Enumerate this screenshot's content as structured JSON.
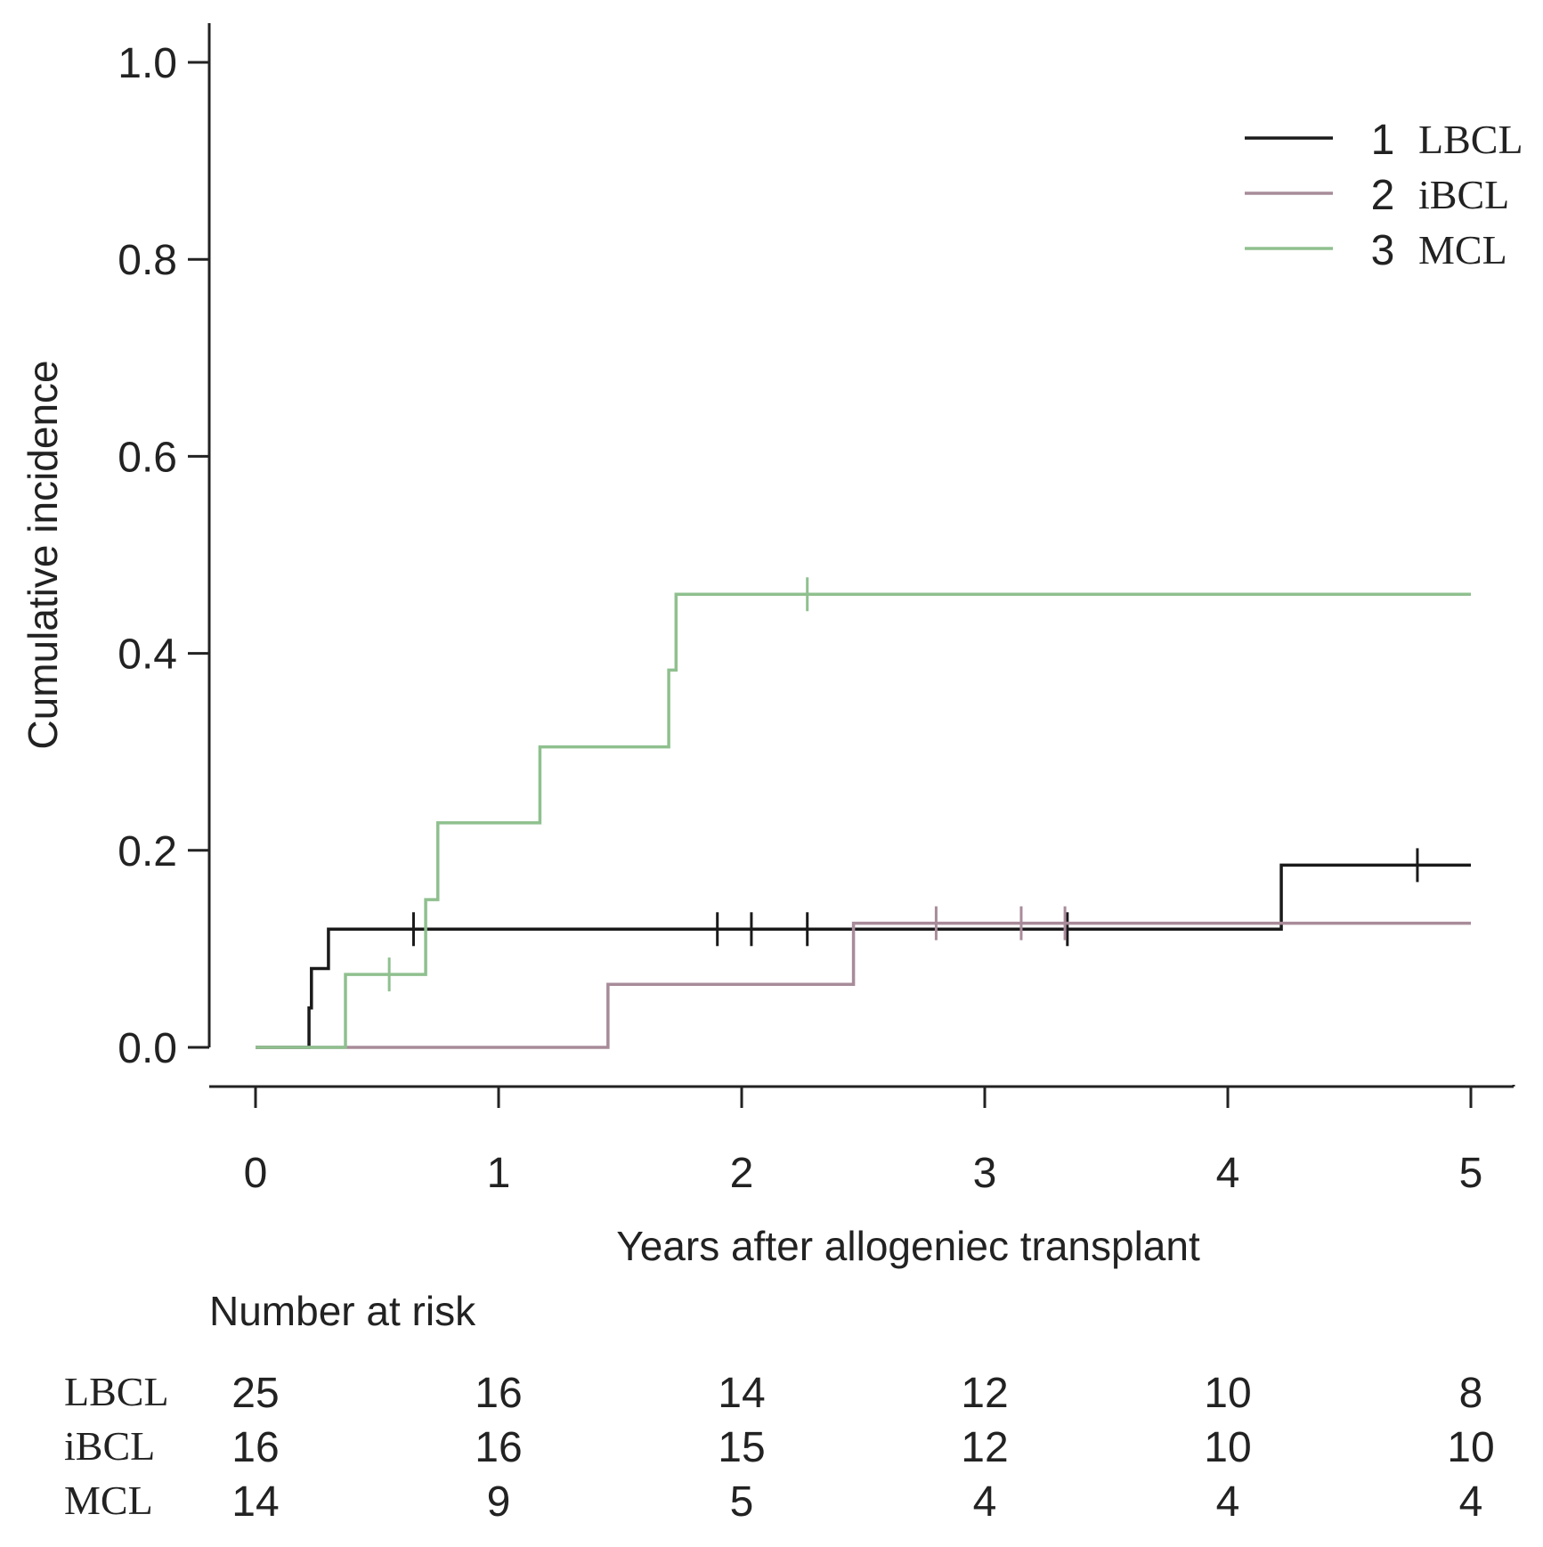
{
  "chart_data": {
    "type": "line",
    "step": true,
    "title": "",
    "xlabel": "Years after allogeniec transplant",
    "ylabel": "Cumulative incidence",
    "xlim": [
      0,
      5
    ],
    "ylim": [
      0,
      1.0
    ],
    "xticks": [
      0,
      1,
      2,
      3,
      4,
      5
    ],
    "xtick_labels": [
      "0",
      "1",
      "2",
      "3",
      "4",
      "5"
    ],
    "yticks": [
      0.0,
      0.2,
      0.4,
      0.6,
      0.8,
      1.0
    ],
    "ytick_labels": [
      "0.0",
      "0.2",
      "0.4",
      "0.6",
      "0.8",
      "1.0"
    ],
    "grid": false,
    "legend_position": "top-right",
    "series": [
      {
        "number": "1",
        "name": "LBCL",
        "color": "#1a1a1a",
        "steps": [
          [
            0,
            0
          ],
          [
            0.22,
            0.04
          ],
          [
            0.23,
            0.08
          ],
          [
            0.3,
            0.12
          ],
          [
            4.22,
            0.185
          ]
        ],
        "censor_times": [
          0.65,
          1.9,
          2.04,
          2.27,
          3.34,
          4.78
        ],
        "end": 5.0
      },
      {
        "number": "2",
        "name": "iBCL",
        "color": "#a88b99",
        "steps": [
          [
            0,
            0
          ],
          [
            1.45,
            0.064
          ],
          [
            2.46,
            0.126
          ]
        ],
        "censor_times": [
          2.8,
          3.15,
          3.33
        ],
        "end": 5.0
      },
      {
        "number": "3",
        "name": "MCL",
        "color": "#8fc08f",
        "steps": [
          [
            0,
            0
          ],
          [
            0.37,
            0.074
          ],
          [
            0.7,
            0.15
          ],
          [
            0.75,
            0.228
          ],
          [
            1.17,
            0.305
          ],
          [
            1.7,
            0.383
          ],
          [
            1.73,
            0.46
          ]
        ],
        "censor_times": [
          0.55,
          2.27
        ],
        "end": 5.0
      }
    ],
    "risk_table": {
      "title": "Number at risk",
      "times": [
        0,
        1,
        2,
        3,
        4,
        5
      ],
      "rows": [
        {
          "label": "LBCL",
          "counts": [
            25,
            16,
            14,
            12,
            10,
            8
          ]
        },
        {
          "label": "iBCL",
          "counts": [
            16,
            16,
            15,
            12,
            10,
            10
          ]
        },
        {
          "label": "MCL",
          "counts": [
            14,
            9,
            5,
            4,
            4,
            4
          ]
        }
      ]
    }
  }
}
